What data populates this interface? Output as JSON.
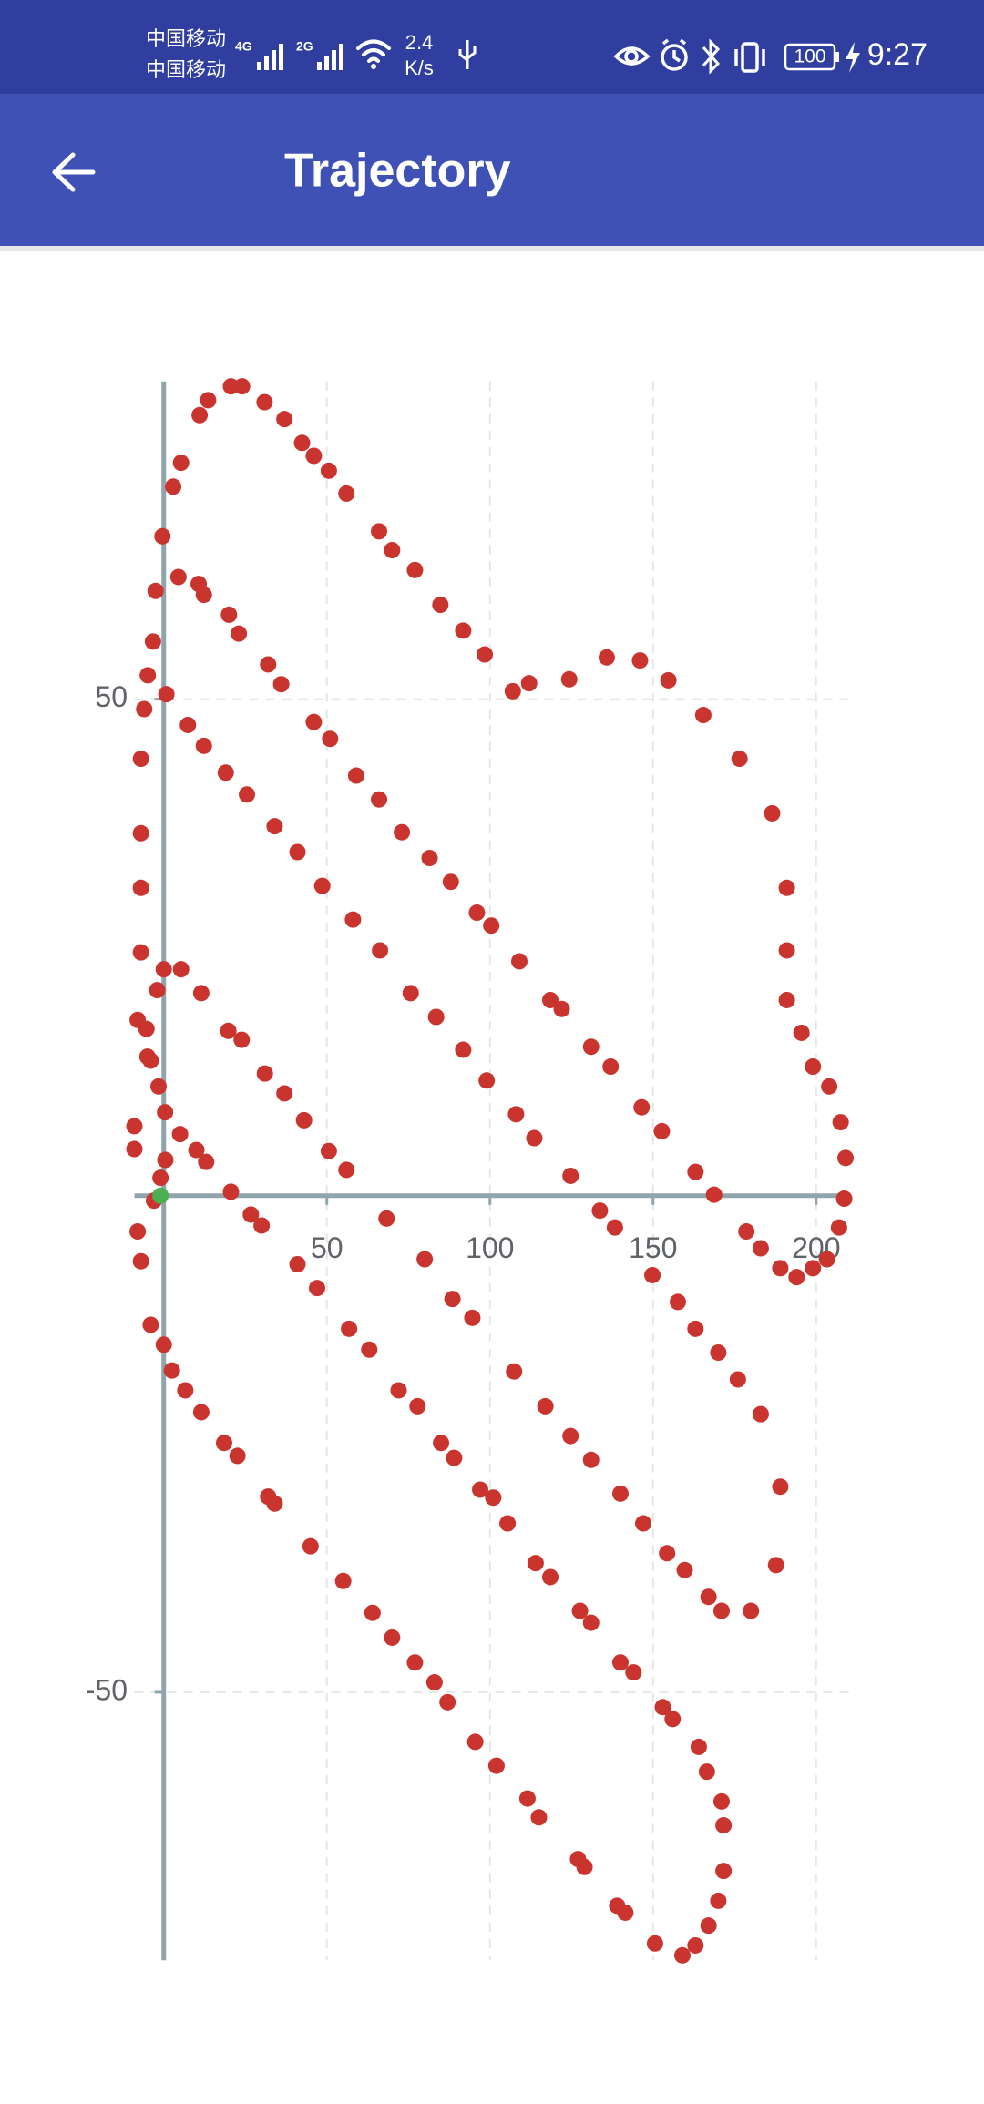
{
  "status_bar": {
    "carrier_1": "中国移动",
    "carrier_2": "中国移动",
    "network_1": "4G",
    "network_2": "2G",
    "speed": "2.4",
    "speed_unit": "K/s",
    "battery": "100",
    "time": "9:27"
  },
  "app_bar": {
    "title": "Trajectory"
  },
  "chart_data": {
    "type": "scatter",
    "xlim": [
      -9,
      210
    ],
    "ylim": [
      -77,
      82
    ],
    "xticks": [
      50,
      100,
      150,
      200
    ],
    "yticks": [
      -50,
      50
    ],
    "grid": true,
    "series": [
      {
        "color": "#c9352e",
        "x": [
          -6,
          -7,
          -7,
          -7,
          -7,
          -8,
          -5,
          -9,
          -9,
          -8,
          -7,
          -4,
          0,
          2.5,
          6.6,
          11.5,
          18.5,
          22.6,
          32,
          34,
          45,
          55,
          64,
          70,
          77,
          83,
          87,
          95.5,
          102,
          111.5,
          115,
          127,
          129,
          139,
          141.5,
          150.6,
          159,
          163,
          167,
          170,
          171.6,
          171.6,
          171,
          166.5,
          164,
          156,
          153,
          144,
          140,
          131,
          127.6,
          118.5,
          114,
          105.4,
          101,
          97,
          89,
          85,
          77.8,
          72,
          63,
          56.8,
          47,
          41,
          30,
          26.7,
          20.6,
          13,
          10,
          5,
          0.4,
          -1.6,
          -4,
          -5.3,
          -2,
          0,
          5.3,
          11.5,
          19.8,
          23.9,
          31,
          37,
          43,
          50.6,
          56,
          4.5,
          10.7,
          12.3,
          20,
          23,
          32,
          36,
          46,
          51,
          59,
          66,
          73,
          81.5,
          88,
          96,
          100.4,
          109,
          118.5,
          122,
          131,
          137,
          146.5,
          152.7,
          163,
          168.7,
          178.6,
          183,
          189,
          194,
          199,
          203.3,
          207,
          208.6,
          209,
          207.5,
          204,
          199,
          195.5,
          191,
          191,
          191,
          186.5,
          176.5,
          165.4,
          154.7,
          146,
          135.8,
          124.3,
          112,
          107,
          98.4,
          91.8,
          84.8,
          77,
          70,
          66,
          56,
          50.6,
          46,
          42.4,
          37,
          30.9,
          24,
          20.6,
          13.6,
          11,
          5.3,
          2.9,
          -0.4,
          -2.5,
          -3.3,
          -4.9,
          0.8,
          7.4,
          12.3,
          19,
          25.5,
          34,
          41,
          48.6,
          58,
          66.3,
          75.7,
          83.5,
          91.8,
          99,
          108,
          113.6,
          124.7,
          133.7,
          138.3,
          149.8,
          157.6,
          163,
          170,
          176,
          183,
          189,
          187.7,
          180,
          171,
          167,
          159.7,
          154.3,
          147,
          140,
          131,
          124.7,
          117,
          107.4,
          94.6,
          88.5,
          80,
          68.3,
          -1,
          0.5,
          -3
        ],
        "y": [
          49,
          44,
          36.5,
          31,
          24.5,
          17.7,
          14,
          7,
          4.7,
          -3.6,
          -6.6,
          -13,
          -15,
          -17.6,
          -19.6,
          -21.8,
          -24.9,
          -26.2,
          -30.3,
          -31,
          -35.3,
          -38.8,
          -42,
          -44.5,
          -47,
          -49,
          -51,
          -55,
          -57.4,
          -60.7,
          -62.6,
          -66.8,
          -67.6,
          -71.5,
          -72.2,
          -75.3,
          -76.5,
          -75.5,
          -73.5,
          -71,
          -68,
          -63.4,
          -61,
          -58,
          -55.5,
          -52.7,
          -51.5,
          -48,
          -47,
          -43,
          -41.8,
          -38.4,
          -37,
          -33,
          -30.4,
          -29.6,
          -26.4,
          -24.9,
          -21.2,
          -19.6,
          -15.5,
          -13.4,
          -9.3,
          -6.9,
          -3,
          -1.9,
          0.4,
          3.4,
          4.6,
          6.2,
          8.4,
          11,
          13.6,
          16.8,
          20.7,
          22.8,
          22.8,
          20.4,
          16.6,
          15.7,
          12.3,
          10.3,
          7.6,
          4.5,
          2.6,
          62.3,
          61.6,
          60.5,
          58.5,
          56.6,
          53.5,
          51.5,
          47.7,
          46,
          42.3,
          39.9,
          36.6,
          34,
          31.6,
          28.5,
          27.2,
          23.6,
          19.7,
          18.8,
          15,
          13,
          8.9,
          6.5,
          2.4,
          0.1,
          -3.6,
          -5.3,
          -7.3,
          -8.2,
          -7.3,
          -6.4,
          -3.2,
          -0.3,
          3.8,
          7.4,
          11,
          13,
          16.4,
          19.7,
          24.7,
          31,
          38.5,
          44,
          48.4,
          51.9,
          53.9,
          54.2,
          52,
          51.6,
          50.8,
          54.5,
          56.9,
          59.5,
          63,
          65,
          66.9,
          70.7,
          73,
          74.5,
          75.8,
          78.2,
          79.9,
          81.5,
          81.5,
          80.1,
          78.6,
          73.8,
          71.4,
          66.4,
          60.9,
          55.8,
          52.4,
          50.5,
          47.4,
          45.3,
          42.6,
          40.4,
          37.2,
          34.6,
          31.2,
          27.8,
          24.7,
          20.4,
          18,
          14.7,
          11.6,
          8.2,
          5.8,
          2,
          -1.5,
          -3.2,
          -8,
          -10.7,
          -13.4,
          -15.8,
          -18.5,
          -22,
          -29.3,
          -37.2,
          -41.8,
          -41.8,
          -40.4,
          -37.7,
          -36,
          -33,
          -30,
          -26.6,
          -24.2,
          -21.2,
          -17.7,
          -12.3,
          -10.4,
          -6.4,
          -2.3,
          1.8,
          3.6,
          -0.5
        ]
      },
      {
        "color": "#4caf50",
        "x": [
          -1
        ],
        "y": [
          0
        ]
      }
    ]
  }
}
